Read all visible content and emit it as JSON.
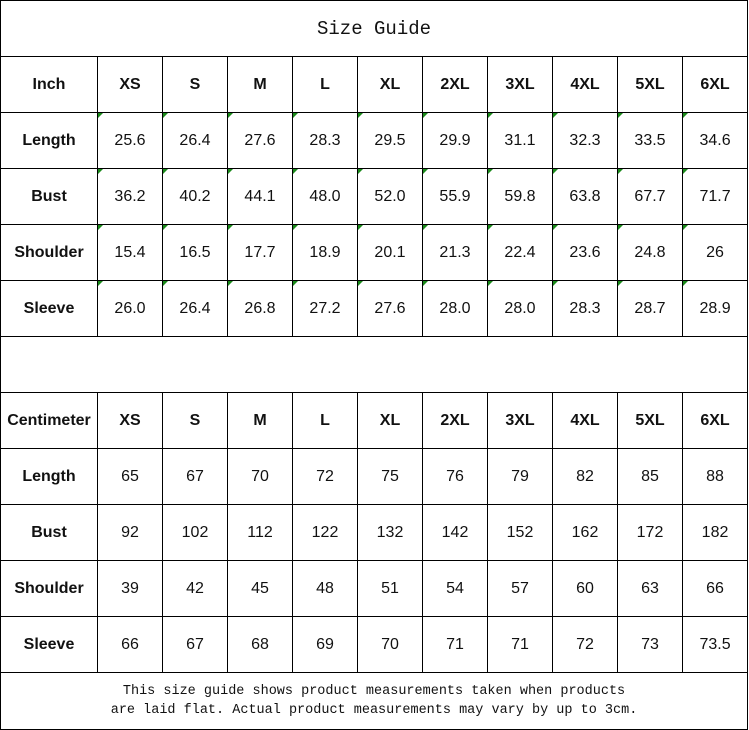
{
  "title": "Size Guide",
  "sizes": [
    "XS",
    "S",
    "M",
    "L",
    "XL",
    "2XL",
    "3XL",
    "4XL",
    "5XL",
    "6XL"
  ],
  "inch": {
    "unit_label": "Inch",
    "rows": [
      {
        "label": "Length",
        "values": [
          "25.6",
          "26.4",
          "27.6",
          "28.3",
          "29.5",
          "29.9",
          "31.1",
          "32.3",
          "33.5",
          "34.6"
        ]
      },
      {
        "label": "Bust",
        "values": [
          "36.2",
          "40.2",
          "44.1",
          "48.0",
          "52.0",
          "55.9",
          "59.8",
          "63.8",
          "67.7",
          "71.7"
        ]
      },
      {
        "label": "Shoulder",
        "values": [
          "15.4",
          "16.5",
          "17.7",
          "18.9",
          "20.1",
          "21.3",
          "22.4",
          "23.6",
          "24.8",
          "26"
        ]
      },
      {
        "label": "Sleeve",
        "values": [
          "26.0",
          "26.4",
          "26.8",
          "27.2",
          "27.6",
          "28.0",
          "28.0",
          "28.3",
          "28.7",
          "28.9"
        ]
      }
    ]
  },
  "cm": {
    "unit_label": "Centimeter",
    "rows": [
      {
        "label": "Length",
        "values": [
          "65",
          "67",
          "70",
          "72",
          "75",
          "76",
          "79",
          "82",
          "85",
          "88"
        ]
      },
      {
        "label": "Bust",
        "values": [
          "92",
          "102",
          "112",
          "122",
          "132",
          "142",
          "152",
          "162",
          "172",
          "182"
        ]
      },
      {
        "label": "Shoulder",
        "values": [
          "39",
          "42",
          "45",
          "48",
          "51",
          "54",
          "57",
          "60",
          "63",
          "66"
        ]
      },
      {
        "label": "Sleeve",
        "values": [
          "66",
          "67",
          "68",
          "69",
          "70",
          "71",
          "71",
          "72",
          "73",
          "73.5"
        ]
      }
    ]
  },
  "footer": {
    "line1": "This size guide shows product measurements taken when products",
    "line2": "are laid flat. Actual product measurements may vary by up to 3cm."
  },
  "colors": {
    "text_indicator": "#1a8a1a"
  }
}
